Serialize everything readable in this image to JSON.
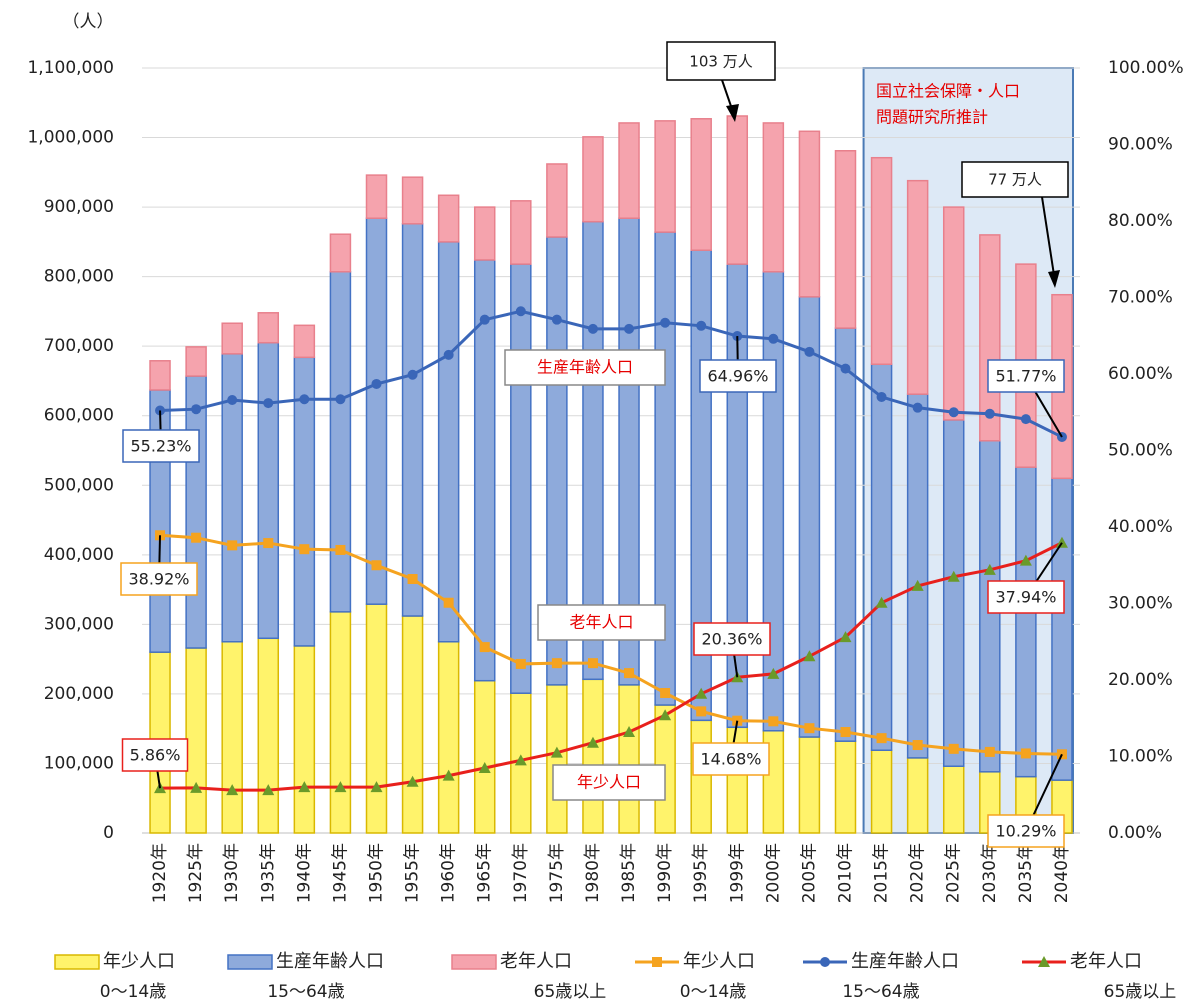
{
  "chart_data": {
    "type": "bar",
    "stacked": true,
    "ylabel": "（人）",
    "categories": [
      "1920年",
      "1925年",
      "1930年",
      "1935年",
      "1940年",
      "1945年",
      "1950年",
      "1955年",
      "1960年",
      "1965年",
      "1970年",
      "1975年",
      "1980年",
      "1985年",
      "1990年",
      "1995年",
      "1999年",
      "2000年",
      "2005年",
      "2010年",
      "2015年",
      "2020年",
      "2025年",
      "2030年",
      "2035年",
      "2040年"
    ],
    "ylim": [
      0,
      1100000
    ],
    "yticks": [
      0,
      {
        "value": 100000,
        "label": "100,000"
      },
      {
        "value": 200000,
        "label": "200,000"
      },
      {
        "value": 300000,
        "label": "300,000"
      },
      {
        "value": 400000,
        "label": "400,000"
      },
      {
        "value": 500000,
        "label": "500,000"
      },
      {
        "value": 600000,
        "label": "600,000"
      },
      {
        "value": 700000,
        "label": "700,000"
      },
      {
        "value": 800000,
        "label": "800,000"
      },
      {
        "value": 900000,
        "label": "900,000"
      },
      {
        "value": 1000000,
        "label": "1,000,000"
      },
      {
        "value": 1100000,
        "label": "1,100,000"
      }
    ],
    "y2lim": [
      0,
      100
    ],
    "y2ticks": [
      {
        "value": 0,
        "label": "0.00%"
      },
      {
        "value": 10,
        "label": "10.00%"
      },
      {
        "value": 20,
        "label": "20.00%"
      },
      {
        "value": 30,
        "label": "30.00%"
      },
      {
        "value": 40,
        "label": "40.00%"
      },
      {
        "value": 50,
        "label": "50.00%"
      },
      {
        "value": 60,
        "label": "60.00%"
      },
      {
        "value": 70,
        "label": "70.00%"
      },
      {
        "value": 80,
        "label": "80.00%"
      },
      {
        "value": 90,
        "label": "90.00%"
      },
      {
        "value": 100,
        "label": "100.00%"
      }
    ],
    "grid": true,
    "series": [
      {
        "name": "年少人口",
        "sublabel": "0〜14歳",
        "color": "#fff36b",
        "edge": "#d9b800",
        "values": [
          260000,
          266000,
          275000,
          280000,
          269000,
          318000,
          329000,
          312000,
          275000,
          219000,
          201000,
          213000,
          221000,
          213000,
          184000,
          162000,
          152000,
          147000,
          138000,
          132000,
          119000,
          108000,
          96000,
          88000,
          81000,
          76000
        ]
      },
      {
        "name": "生産年齢人口",
        "sublabel": "15〜64歳",
        "color": "#8eaadb",
        "edge": "#4472c4",
        "values": [
          377000,
          391000,
          414000,
          425000,
          415000,
          489000,
          555000,
          564000,
          575000,
          605000,
          617000,
          644000,
          658000,
          671000,
          680000,
          676000,
          666000,
          660000,
          633000,
          594000,
          555000,
          523000,
          498000,
          476000,
          445000,
          434000
        ]
      },
      {
        "name": "老年人口",
        "sublabel": "65歳以上",
        "color": "#f5a3ad",
        "edge": "#e8808c",
        "values": [
          42000,
          42000,
          44000,
          43000,
          46000,
          54000,
          62000,
          67000,
          67000,
          76000,
          91000,
          105000,
          122000,
          137000,
          160000,
          189000,
          213000,
          214000,
          238000,
          255000,
          297000,
          307000,
          306000,
          296000,
          292000,
          264000
        ]
      },
      {
        "name": "年少人口",
        "sublabel": "0〜14歳",
        "type": "line",
        "axis": "y2",
        "color": "#f5a31f",
        "marker": "square",
        "marker_color": "#f5a31f",
        "values": [
          38.92,
          38.6,
          37.6,
          37.9,
          37.1,
          37.0,
          35.0,
          33.2,
          30.1,
          24.3,
          22.1,
          22.2,
          22.2,
          20.9,
          18.3,
          15.9,
          14.68,
          14.6,
          13.7,
          13.2,
          12.4,
          11.5,
          11.0,
          10.6,
          10.4,
          10.29
        ],
        "value_labels": [
          "38.92%",
          null,
          null,
          null,
          null,
          null,
          null,
          null,
          null,
          null,
          null,
          null,
          null,
          null,
          null,
          null,
          "14.68%",
          null,
          null,
          null,
          null,
          null,
          null,
          null,
          null,
          "10.29%"
        ]
      },
      {
        "name": "生産年齢人口",
        "sublabel": "15〜64歳",
        "type": "line",
        "axis": "y2",
        "color": "#3a66b8",
        "marker": "circle",
        "marker_color": "#3a66b8",
        "values": [
          55.23,
          55.4,
          56.6,
          56.2,
          56.7,
          56.7,
          58.7,
          59.9,
          62.5,
          67.1,
          68.2,
          67.1,
          65.9,
          65.9,
          66.7,
          66.3,
          64.96,
          64.6,
          62.9,
          60.7,
          57.0,
          55.6,
          55.0,
          54.8,
          54.1,
          51.77
        ],
        "value_labels": [
          "55.23%",
          null,
          null,
          null,
          null,
          null,
          null,
          null,
          null,
          null,
          null,
          null,
          null,
          null,
          null,
          null,
          "64.96%",
          null,
          null,
          null,
          null,
          null,
          null,
          null,
          null,
          "51.77%"
        ]
      },
      {
        "name": "老年人口",
        "sublabel": "65歳以上",
        "type": "line",
        "axis": "y2",
        "color": "#e8201c",
        "marker": "triangle",
        "marker_color": "#6a9a2a",
        "values": [
          5.86,
          5.9,
          5.6,
          5.6,
          6.0,
          6.0,
          6.0,
          6.7,
          7.5,
          8.5,
          9.5,
          10.5,
          11.8,
          13.2,
          15.4,
          18.2,
          20.36,
          20.8,
          23.1,
          25.6,
          30.1,
          32.3,
          33.5,
          34.4,
          35.6,
          37.94
        ],
        "value_labels": [
          "5.86%",
          null,
          null,
          null,
          null,
          null,
          null,
          null,
          null,
          null,
          null,
          null,
          null,
          null,
          null,
          null,
          "20.36%",
          null,
          null,
          null,
          null,
          null,
          null,
          null,
          null,
          "37.94%"
        ]
      }
    ],
    "annotations": [
      {
        "text": "103 万人"
      },
      {
        "text": "77 万人"
      },
      {
        "text": "生産年齢人口"
      },
      {
        "text": "老年人口"
      },
      {
        "text": "年少人口"
      },
      {
        "text": "国立社会保障・人口"
      },
      {
        "text": "問題研究所推計"
      }
    ]
  }
}
